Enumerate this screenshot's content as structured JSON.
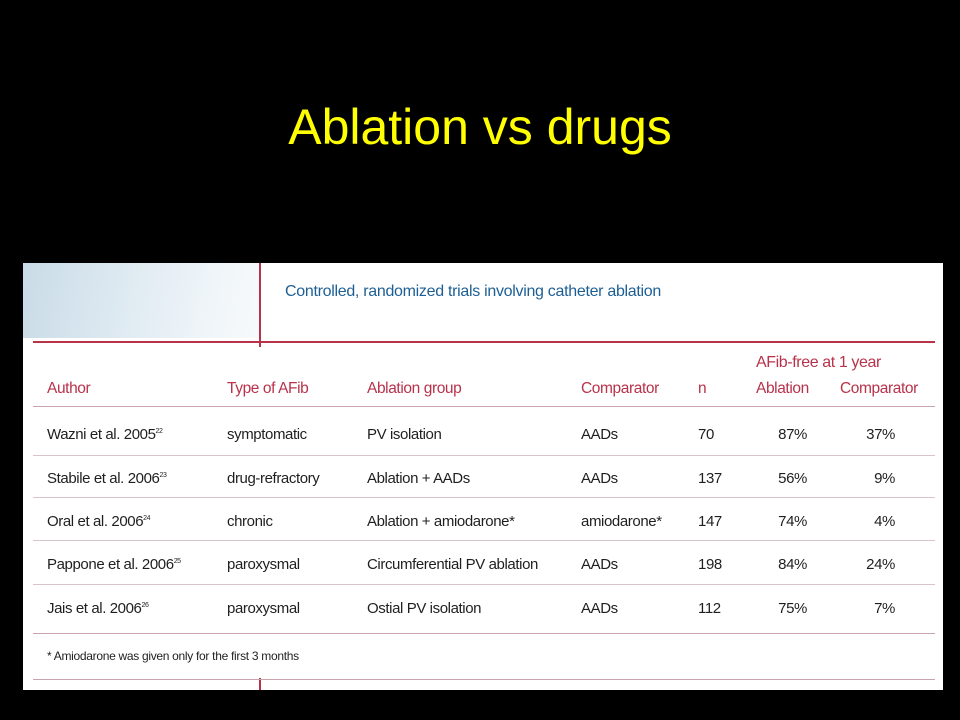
{
  "slide": {
    "title": "Ablation vs drugs"
  },
  "figure": {
    "caption": "Controlled, randomized trials involving catheter ablation",
    "group_header": "AFib-free at 1 year",
    "headers": {
      "author": "Author",
      "type": "Type of AFib",
      "ablation_group": "Ablation group",
      "comparator": "Comparator",
      "n": "n",
      "ablation": "Ablation",
      "comparator_result": "Comparator"
    },
    "rows": [
      {
        "author": "Wazni et al. 2005",
        "ref": "22",
        "type": "symptomatic",
        "ablation_group": "PV isolation",
        "comparator": "AADs",
        "n": "70",
        "ablation": "87%",
        "comparator_result": "37%"
      },
      {
        "author": "Stabile et al. 2006",
        "ref": "23",
        "type": "drug-refractory",
        "ablation_group": "Ablation + AADs",
        "comparator": "AADs",
        "n": "137",
        "ablation": "56%",
        "comparator_result": "9%"
      },
      {
        "author": "Oral et al. 2006",
        "ref": "24",
        "type": "chronic",
        "ablation_group": "Ablation + amiodarone*",
        "comparator": "amiodarone*",
        "n": "147",
        "ablation": "74%",
        "comparator_result": "4%"
      },
      {
        "author": "Pappone et al. 2006",
        "ref": "25",
        "type": "paroxysmal",
        "ablation_group": "Circumferential PV ablation",
        "comparator": "AADs",
        "n": "198",
        "ablation": "84%",
        "comparator_result": "24%"
      },
      {
        "author": "Jais et al. 2006",
        "ref": "26",
        "type": "paroxysmal",
        "ablation_group": "Ostial PV isolation",
        "comparator": "AADs",
        "n": "112",
        "ablation": "75%",
        "comparator_result": "7%"
      }
    ],
    "footnote": "* Amiodarone was given only for the first 3 months"
  },
  "colors": {
    "background": "#000000",
    "title": "#ffff00",
    "accent": "#b8324a",
    "caption": "#1d5f94"
  }
}
